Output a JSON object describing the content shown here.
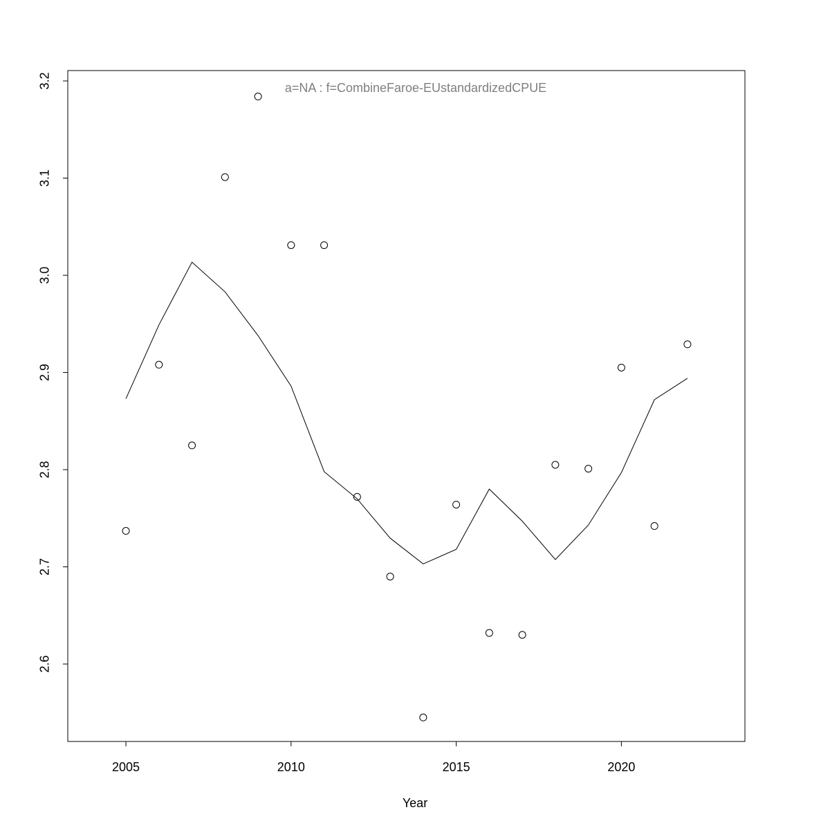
{
  "chart_data": {
    "type": "scatter",
    "annotation": "a=NA  :  f=CombineFaroe-EUstandardizedCPUE",
    "x_label": "Year",
    "x": [
      2005,
      2006,
      2007,
      2008,
      2009,
      2010,
      2011,
      2012,
      2013,
      2014,
      2015,
      2016,
      2017,
      2018,
      2019,
      2020,
      2021,
      2022
    ],
    "series": [
      {
        "type": "scatter",
        "color": "#000000",
        "values": [
          2.737,
          2.908,
          2.825,
          3.101,
          3.184,
          3.031,
          3.031,
          2.772,
          2.69,
          2.545,
          2.764,
          2.632,
          2.63,
          2.805,
          2.801,
          2.905,
          2.742,
          2.929
        ]
      },
      {
        "type": "line",
        "color": "#000000",
        "values": [
          2.873,
          2.949,
          3.0135,
          2.983,
          2.938,
          2.886,
          2.798,
          2.77,
          2.7295,
          2.703,
          2.718,
          2.78,
          2.747,
          2.7075,
          2.743,
          2.797,
          2.872,
          2.894
        ]
      }
    ],
    "xlim": [
      2003.24,
      2023.74
    ],
    "ylim": [
      2.5203,
      3.2107
    ],
    "xticks": [
      2005,
      2010,
      2015,
      2020
    ],
    "yticks": [
      2.6,
      2.7,
      2.8,
      2.9,
      {
        "value": 3,
        "label": "3.0"
      },
      3.1,
      3.2
    ],
    "grid": false
  }
}
